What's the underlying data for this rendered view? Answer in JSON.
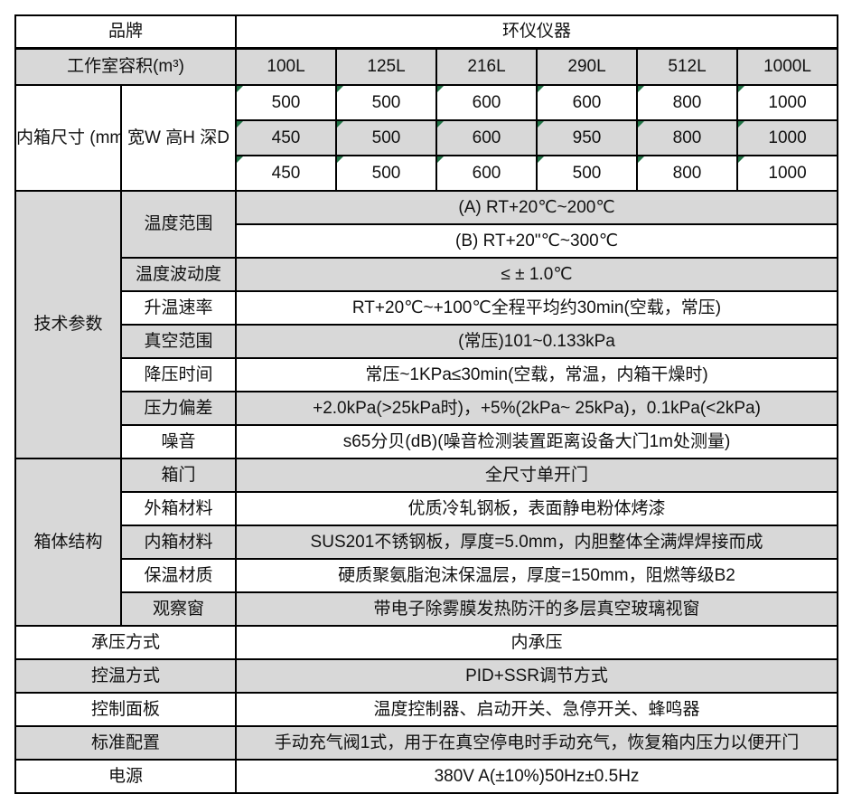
{
  "colors": {
    "shade": "#d8d8d8",
    "border": "#000000",
    "flag_green": "#217346"
  },
  "brand_row": {
    "label": "品牌",
    "value": "环仪仪器"
  },
  "capacity_row": {
    "label": "工作室容积(m³)",
    "values": [
      "100L",
      "125L",
      "216L",
      "290L",
      "512L",
      "1000L"
    ]
  },
  "inner_size": {
    "label": "内箱尺寸 (mm",
    "sub_label": "宽W 高H 深D",
    "rows": [
      [
        "500",
        "500",
        "600",
        "600",
        "800",
        "1000"
      ],
      [
        "450",
        "500",
        "600",
        "950",
        "800",
        "1000"
      ],
      [
        "450",
        "500",
        "600",
        "500",
        "800",
        "1000"
      ]
    ]
  },
  "tech_params": {
    "group_label": "技术参数",
    "temp_range": {
      "label": "温度范围",
      "value_a": "(A) RT+20℃~200℃",
      "value_b": "(B) RT+20\"℃~300℃"
    },
    "rows": [
      {
        "label": "温度波动度",
        "value": "≤ ± 1.0℃"
      },
      {
        "label": "升温速率",
        "value": "RT+20℃~+100℃全程平均约30min(空载，常压)"
      },
      {
        "label": "真空范围",
        "value": "(常压)101~0.133kPa"
      },
      {
        "label": "降压时间",
        "value": "常压~1KPa≤30min(空载，常温，内箱干燥时)"
      },
      {
        "label": "压力偏差",
        "value": "+2.0kPa(>25kPa时)，+5%(2kPa~ 25kPa)，0.1kPa(<2kPa)"
      },
      {
        "label": "噪音",
        "value": "s65分贝(dB)(噪音检测装置距离设备大门1m处测量)"
      }
    ]
  },
  "structure": {
    "group_label": "箱体结构",
    "rows": [
      {
        "label": "箱门",
        "value": "全尺寸单开门"
      },
      {
        "label": "外箱材料",
        "value": "优质冷轧钢板，表面静电粉体烤漆"
      },
      {
        "label": "内箱材料",
        "value": "SUS201不锈钢板，厚度=5.0mm，内胆整体全满焊焊接而成"
      },
      {
        "label": "保温材质",
        "value": "硬质聚氨脂泡沫保温层，厚度=150mm，阻燃等级B2"
      },
      {
        "label": "观察窗",
        "value": "带电子除雾膜发热防汗的多层真空玻璃视窗"
      }
    ]
  },
  "bottom_rows": [
    {
      "label": "承压方式",
      "value": "内承压"
    },
    {
      "label": "控温方式",
      "value": "PID+SSR调节方式"
    },
    {
      "label": "控制面板",
      "value": "温度控制器、启动开关、急停开关、蜂鸣器"
    },
    {
      "label": "标准配置",
      "value": "手动充气阀1式，用于在真空停电时手动充气，恢复箱内压力以便开门"
    },
    {
      "label": "电源",
      "value": "380V A(±10%)50Hz±0.5Hz"
    }
  ]
}
